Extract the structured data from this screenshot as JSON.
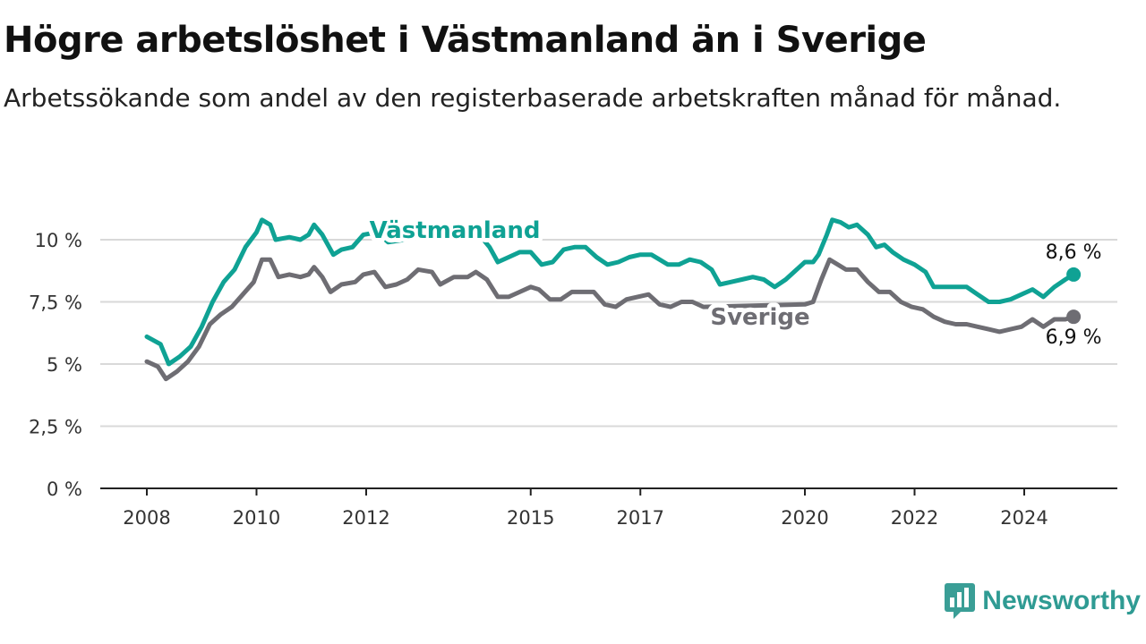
{
  "title": "Högre arbetslöshet i Västmanland än i Sverige",
  "subtitle": "Arbetssökande som andel av den registerbaserade arbetskraften månad för månad.",
  "brand": {
    "name": "Newsworthy",
    "icon": "bar-chart-speech-icon",
    "color": "#3a9e96"
  },
  "chart_data": {
    "type": "line",
    "ylim": [
      0,
      10.8
    ],
    "yticks": [
      0,
      2.5,
      5,
      7.5,
      10
    ],
    "ytick_labels": [
      "0 %",
      "2,5 %",
      "5 %",
      "7,5 %",
      "10 %"
    ],
    "xlim": [
      2008,
      2025
    ],
    "xticks": [
      2008,
      2010,
      2012,
      2015,
      2017,
      2020,
      2022,
      2024
    ],
    "xtick_labels": [
      "2008",
      "2010",
      "2012",
      "2015",
      "2017",
      "2020",
      "2022",
      "2024"
    ],
    "grid": "horizontal",
    "series": [
      {
        "name": "Västmanland",
        "color": "#0fa294",
        "end_label": "8,6 %",
        "points": [
          [
            2008.0,
            6.1
          ],
          [
            2008.25,
            5.8
          ],
          [
            2008.4,
            5.0
          ],
          [
            2008.6,
            5.3
          ],
          [
            2008.8,
            5.7
          ],
          [
            2009.0,
            6.5
          ],
          [
            2009.2,
            7.5
          ],
          [
            2009.4,
            8.3
          ],
          [
            2009.6,
            8.8
          ],
          [
            2009.8,
            9.7
          ],
          [
            2010.0,
            10.3
          ],
          [
            2010.1,
            10.8
          ],
          [
            2010.25,
            10.6
          ],
          [
            2010.35,
            10.0
          ],
          [
            2010.6,
            10.1
          ],
          [
            2010.8,
            10.0
          ],
          [
            2010.95,
            10.2
          ],
          [
            2011.05,
            10.6
          ],
          [
            2011.2,
            10.2
          ],
          [
            2011.4,
            9.4
          ],
          [
            2011.55,
            9.6
          ],
          [
            2011.75,
            9.7
          ],
          [
            2011.95,
            10.2
          ],
          [
            2012.2,
            10.3
          ],
          [
            2012.4,
            9.9
          ],
          [
            2012.7,
            10.0
          ],
          [
            2013.0,
            10.2
          ],
          [
            2013.5,
            10.4
          ],
          [
            2013.9,
            10.3
          ],
          [
            2014.1,
            10.1
          ],
          [
            2014.25,
            9.7
          ],
          [
            2014.4,
            9.1
          ],
          [
            2014.6,
            9.3
          ],
          [
            2014.8,
            9.5
          ],
          [
            2015.0,
            9.5
          ],
          [
            2015.2,
            9.0
          ],
          [
            2015.4,
            9.1
          ],
          [
            2015.6,
            9.6
          ],
          [
            2015.8,
            9.7
          ],
          [
            2016.0,
            9.7
          ],
          [
            2016.2,
            9.3
          ],
          [
            2016.4,
            9.0
          ],
          [
            2016.6,
            9.1
          ],
          [
            2016.8,
            9.3
          ],
          [
            2017.0,
            9.4
          ],
          [
            2017.2,
            9.4
          ],
          [
            2017.35,
            9.2
          ],
          [
            2017.5,
            9.0
          ],
          [
            2017.7,
            9.0
          ],
          [
            2017.9,
            9.2
          ],
          [
            2018.1,
            9.1
          ],
          [
            2018.3,
            8.8
          ],
          [
            2018.45,
            8.2
          ],
          [
            2018.65,
            8.3
          ],
          [
            2018.85,
            8.4
          ],
          [
            2019.05,
            8.5
          ],
          [
            2019.25,
            8.4
          ],
          [
            2019.45,
            8.1
          ],
          [
            2019.65,
            8.4
          ],
          [
            2019.85,
            8.8
          ],
          [
            2020.0,
            9.1
          ],
          [
            2020.15,
            9.1
          ],
          [
            2020.25,
            9.4
          ],
          [
            2020.4,
            10.2
          ],
          [
            2020.5,
            10.8
          ],
          [
            2020.65,
            10.7
          ],
          [
            2020.8,
            10.5
          ],
          [
            2020.95,
            10.6
          ],
          [
            2021.15,
            10.2
          ],
          [
            2021.3,
            9.7
          ],
          [
            2021.45,
            9.8
          ],
          [
            2021.6,
            9.5
          ],
          [
            2021.8,
            9.2
          ],
          [
            2022.0,
            9.0
          ],
          [
            2022.2,
            8.7
          ],
          [
            2022.35,
            8.1
          ],
          [
            2022.55,
            8.1
          ],
          [
            2022.75,
            8.1
          ],
          [
            2022.95,
            8.1
          ],
          [
            2023.15,
            7.8
          ],
          [
            2023.35,
            7.5
          ],
          [
            2023.55,
            7.5
          ],
          [
            2023.75,
            7.6
          ],
          [
            2023.95,
            7.8
          ],
          [
            2024.15,
            8.0
          ],
          [
            2024.35,
            7.7
          ],
          [
            2024.55,
            8.1
          ],
          [
            2024.75,
            8.4
          ],
          [
            2024.9,
            8.6
          ]
        ]
      },
      {
        "name": "Sverige",
        "color": "#6e6d73",
        "end_label": "6,9 %",
        "points": [
          [
            2008.0,
            5.1
          ],
          [
            2008.2,
            4.9
          ],
          [
            2008.35,
            4.4
          ],
          [
            2008.55,
            4.7
          ],
          [
            2008.75,
            5.1
          ],
          [
            2008.95,
            5.7
          ],
          [
            2009.15,
            6.6
          ],
          [
            2009.35,
            7.0
          ],
          [
            2009.55,
            7.3
          ],
          [
            2009.75,
            7.8
          ],
          [
            2009.95,
            8.3
          ],
          [
            2010.1,
            9.2
          ],
          [
            2010.25,
            9.2
          ],
          [
            2010.4,
            8.5
          ],
          [
            2010.6,
            8.6
          ],
          [
            2010.8,
            8.5
          ],
          [
            2010.95,
            8.6
          ],
          [
            2011.05,
            8.9
          ],
          [
            2011.2,
            8.5
          ],
          [
            2011.35,
            7.9
          ],
          [
            2011.55,
            8.2
          ],
          [
            2011.8,
            8.3
          ],
          [
            2011.95,
            8.6
          ],
          [
            2012.15,
            8.7
          ],
          [
            2012.35,
            8.1
          ],
          [
            2012.55,
            8.2
          ],
          [
            2012.75,
            8.4
          ],
          [
            2012.95,
            8.8
          ],
          [
            2013.2,
            8.7
          ],
          [
            2013.35,
            8.2
          ],
          [
            2013.6,
            8.5
          ],
          [
            2013.85,
            8.5
          ],
          [
            2014.0,
            8.7
          ],
          [
            2014.2,
            8.4
          ],
          [
            2014.4,
            7.7
          ],
          [
            2014.6,
            7.7
          ],
          [
            2014.8,
            7.9
          ],
          [
            2015.0,
            8.1
          ],
          [
            2015.15,
            8.0
          ],
          [
            2015.35,
            7.6
          ],
          [
            2015.55,
            7.6
          ],
          [
            2015.75,
            7.9
          ],
          [
            2015.95,
            7.9
          ],
          [
            2016.15,
            7.9
          ],
          [
            2016.35,
            7.4
          ],
          [
            2016.55,
            7.3
          ],
          [
            2016.75,
            7.6
          ],
          [
            2016.95,
            7.7
          ],
          [
            2017.15,
            7.8
          ],
          [
            2017.35,
            7.4
          ],
          [
            2017.55,
            7.3
          ],
          [
            2017.75,
            7.5
          ],
          [
            2017.95,
            7.5
          ],
          [
            2018.15,
            7.3
          ],
          [
            2020.0,
            7.4
          ],
          [
            2020.15,
            7.5
          ],
          [
            2020.3,
            8.4
          ],
          [
            2020.45,
            9.2
          ],
          [
            2020.6,
            9.0
          ],
          [
            2020.75,
            8.8
          ],
          [
            2020.95,
            8.8
          ],
          [
            2021.15,
            8.3
          ],
          [
            2021.35,
            7.9
          ],
          [
            2021.55,
            7.9
          ],
          [
            2021.75,
            7.5
          ],
          [
            2021.95,
            7.3
          ],
          [
            2022.15,
            7.2
          ],
          [
            2022.35,
            6.9
          ],
          [
            2022.55,
            6.7
          ],
          [
            2022.75,
            6.6
          ],
          [
            2022.95,
            6.6
          ],
          [
            2023.15,
            6.5
          ],
          [
            2023.35,
            6.4
          ],
          [
            2023.55,
            6.3
          ],
          [
            2023.75,
            6.4
          ],
          [
            2023.95,
            6.5
          ],
          [
            2024.15,
            6.8
          ],
          [
            2024.35,
            6.5
          ],
          [
            2024.55,
            6.8
          ],
          [
            2024.75,
            6.8
          ],
          [
            2024.9,
            6.9
          ]
        ]
      }
    ]
  }
}
